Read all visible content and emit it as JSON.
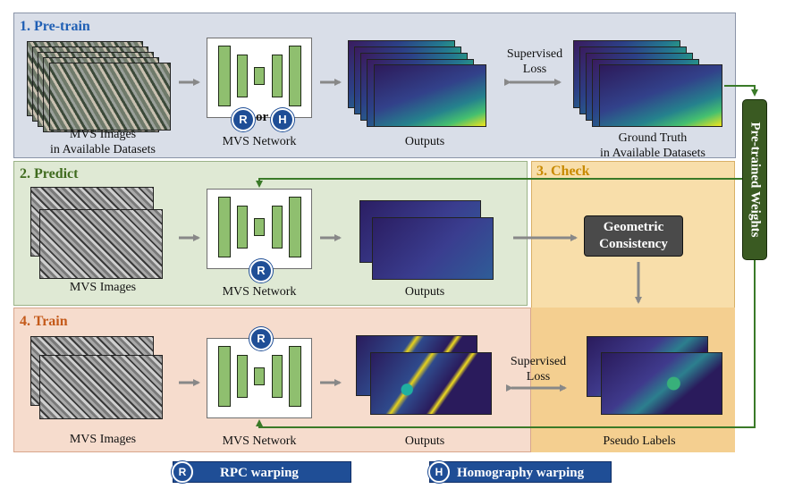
{
  "sections": {
    "pretrain": {
      "title": "1. Pre-train",
      "color": "#1f5fb4",
      "input_caption": [
        "MVS Images",
        "in Available Datasets"
      ],
      "network_caption": "MVS Network",
      "output_caption": "Outputs",
      "loss_caption": [
        "Supervised",
        "Loss"
      ],
      "gt_caption": [
        "Ground Truth",
        "in Available Datasets"
      ],
      "badge_r": "R",
      "or_text": "or",
      "badge_h": "H"
    },
    "predict": {
      "title": "2. Predict",
      "color": "#3f6b1e",
      "input_caption": "MVS Images",
      "network_caption": "MVS Network",
      "output_caption": "Outputs",
      "badge_r": "R"
    },
    "check": {
      "title": "3. Check",
      "color": "#c88a00",
      "box_label": [
        "Geometric",
        "Consistency"
      ],
      "pseudo_caption": "Pseudo Labels"
    },
    "train": {
      "title": "4. Train",
      "color": "#c45a1a",
      "input_caption": "MVS Images",
      "network_caption": "MVS Network",
      "output_caption": "Outputs",
      "loss_caption": [
        "Supervised",
        "Loss"
      ],
      "badge_r": "R"
    }
  },
  "weights_label": "Pre-trained Weights",
  "legend": {
    "rpc": {
      "badge": "R",
      "label": "RPC warping"
    },
    "homography": {
      "badge": "H",
      "label": "Homography warping"
    }
  },
  "colors": {
    "arrow_gray": "#888888",
    "feedback_green": "#3a7a28",
    "network_green": "#8fbf6f",
    "legend_blue": "#1f4e96"
  }
}
